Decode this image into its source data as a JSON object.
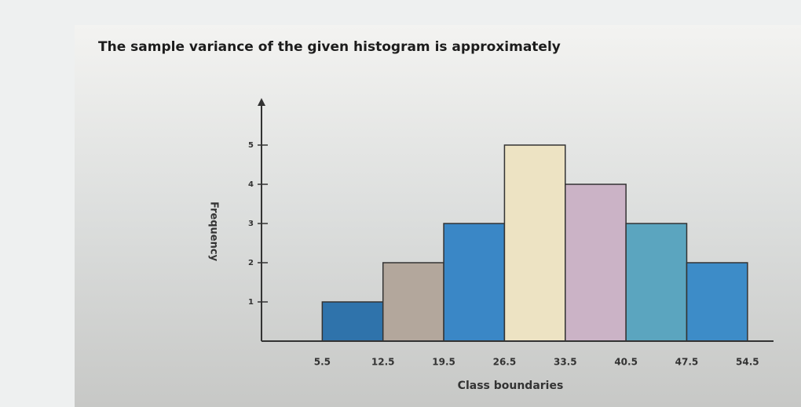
{
  "chart_data": {
    "type": "histogram",
    "title": "The sample variance of the given histogram is approximately",
    "x_label": "Class boundaries",
    "y_label": "Frequency",
    "bins": [
      5.5,
      12.5,
      19.5,
      26.5,
      33.5,
      40.5,
      47.5,
      54.5
    ],
    "values": [
      1,
      2,
      3,
      5,
      4,
      3,
      2
    ],
    "colors": [
      "#2f73ab",
      "#b3a79c",
      "#3a87c6",
      "#ede3c3",
      "#cbb3c6",
      "#5ba5bf",
      "#3d8cc8"
    ],
    "xlim": [
      -1.5,
      57.5
    ],
    "ylim": [
      0,
      6.2
    ],
    "yticks": [
      1,
      2,
      3,
      4,
      5
    ]
  }
}
